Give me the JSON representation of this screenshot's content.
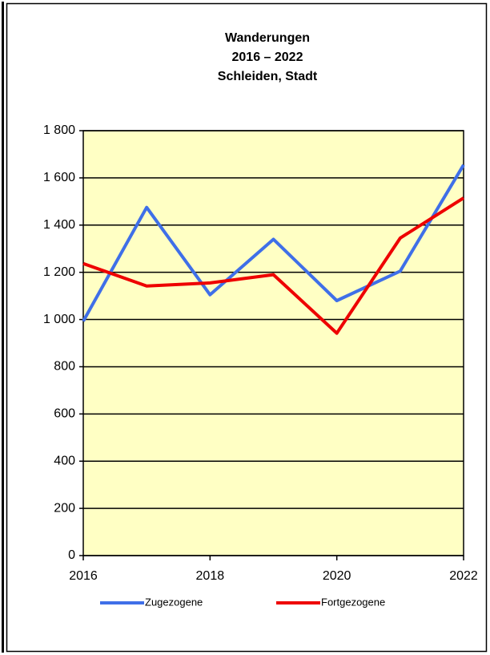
{
  "chart_data": {
    "type": "line",
    "title": [
      "Wanderungen",
      "2016 – 2022",
      "Schleiden, Stadt"
    ],
    "x": [
      2016,
      2017,
      2018,
      2019,
      2020,
      2021,
      2022
    ],
    "series": [
      {
        "name": "Zugezogene",
        "color": "#3f6fe8",
        "values": [
          993,
          1475,
          1105,
          1340,
          1080,
          1205,
          1655
        ]
      },
      {
        "name": "Fortgezogene",
        "color": "#ee0000",
        "values": [
          1237,
          1142,
          1155,
          1190,
          942,
          1345,
          1515
        ]
      }
    ],
    "xlim": [
      2016,
      2022
    ],
    "xticks": [
      2016,
      2018,
      2020,
      2022
    ],
    "ylim": [
      0,
      1800
    ],
    "yticks": [
      0,
      200,
      400,
      600,
      800,
      {
        "value": 1000,
        "label": "1 000"
      },
      {
        "value": 1200,
        "label": "1 200"
      },
      {
        "value": 1400,
        "label": "1 400"
      },
      {
        "value": 1600,
        "label": "1 600"
      },
      {
        "value": 1800,
        "label": "1 800"
      }
    ],
    "grid": true,
    "background": "#ffffc4",
    "legend": "bottom"
  }
}
